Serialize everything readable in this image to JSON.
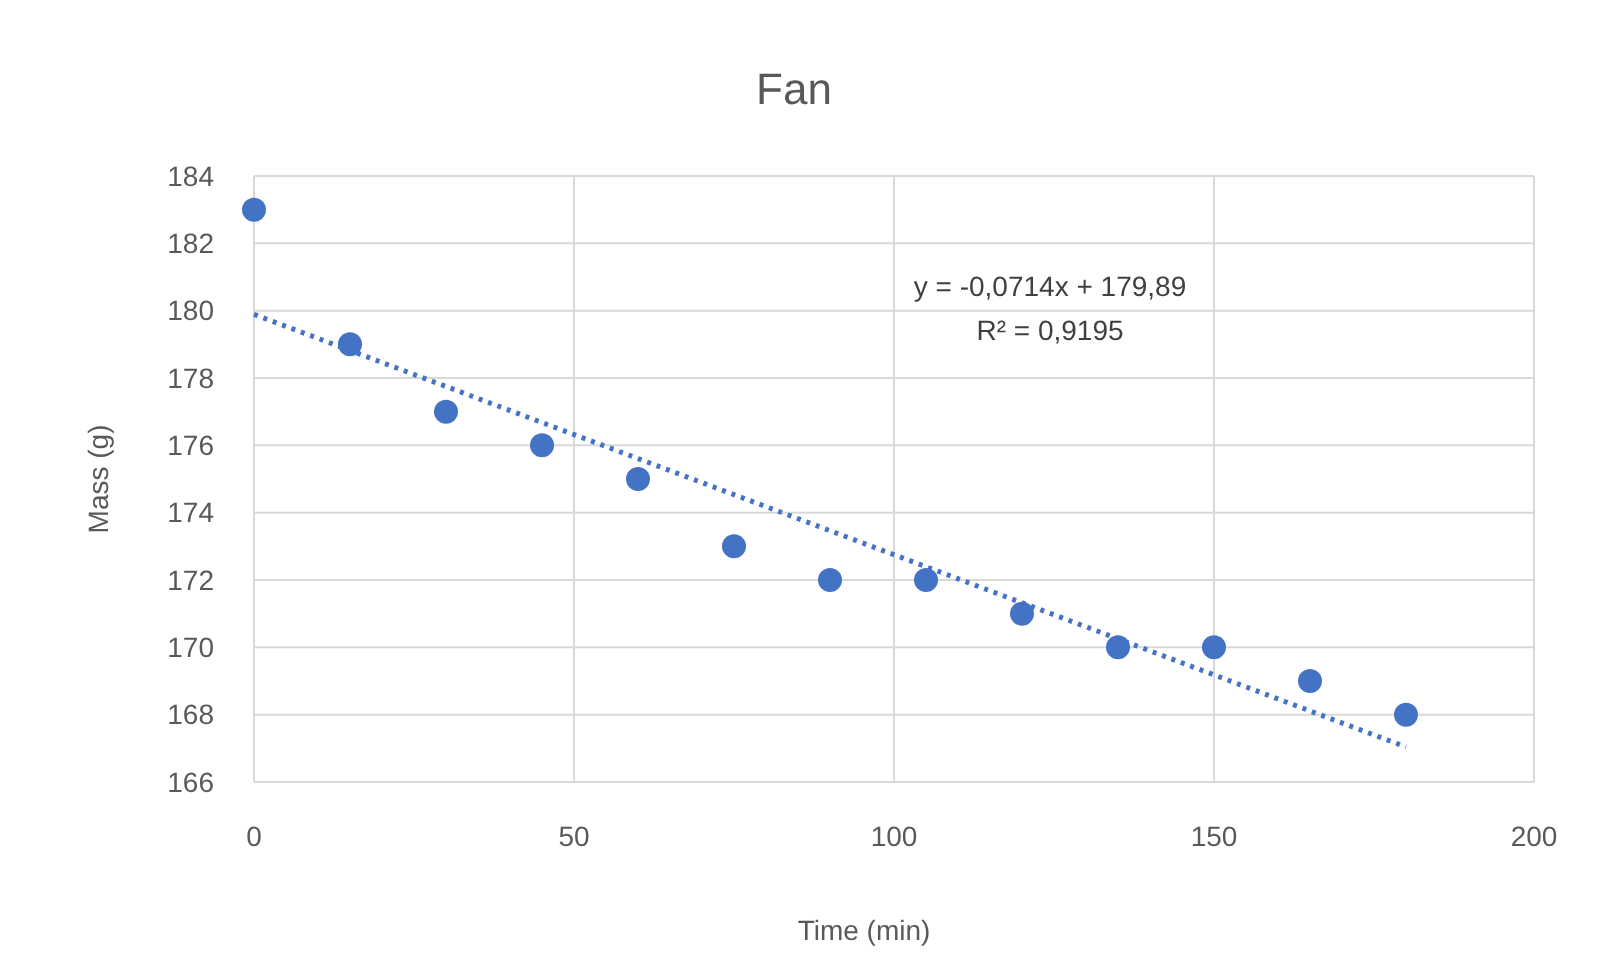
{
  "chart_data": {
    "type": "scatter",
    "title": "Fan",
    "xlabel": "Time (min)",
    "ylabel": "Mass (g)",
    "x": [
      0,
      15,
      30,
      45,
      60,
      75,
      90,
      105,
      120,
      135,
      150,
      165,
      180
    ],
    "series": [
      {
        "color": "#4472c4",
        "marker": "circle",
        "values": [
          183,
          179,
          177,
          176,
          175,
          173,
          172,
          172,
          171,
          170,
          170,
          169,
          168
        ]
      },
      {
        "type": "line",
        "color": "#4472c4",
        "marker": "none",
        "line_style": "dotted",
        "x": [
          0,
          180
        ],
        "values": [
          179.89,
          167.04
        ]
      }
    ],
    "xlim": [
      0,
      200
    ],
    "xticks": [
      0,
      50,
      100,
      150,
      200
    ],
    "ylim": [
      166,
      184
    ],
    "yticks": [
      166,
      168,
      170,
      172,
      174,
      176,
      178,
      180,
      182,
      184
    ],
    "grid": true,
    "annotations": [
      "y = -0,0714x + 179,89",
      "R² = 0,9195"
    ]
  }
}
